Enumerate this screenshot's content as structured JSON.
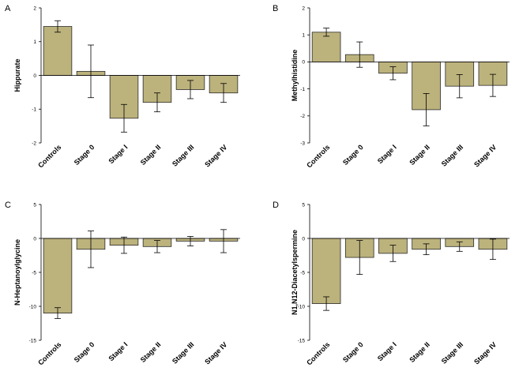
{
  "figure": {
    "bar_color": "#bcb27c",
    "bar_edge": "#2b2b2b"
  },
  "chart_data": [
    {
      "panel": "A",
      "type": "bar",
      "ylabel": "Hippurate",
      "categories": [
        "Controls",
        "Stage 0",
        "Stage I",
        "Stage II",
        "Stage III",
        "Stage IV"
      ],
      "values": [
        1.45,
        0.12,
        -1.27,
        -0.8,
        -0.42,
        -0.52
      ],
      "errors": [
        0.17,
        0.78,
        0.41,
        0.28,
        0.27,
        0.28
      ],
      "ylim": [
        -2,
        2
      ],
      "yticks": [
        -2,
        -1,
        0,
        1,
        2
      ],
      "ytick_labels": [
        "-2",
        "-1",
        "0",
        "1",
        "2"
      ]
    },
    {
      "panel": "B",
      "type": "bar",
      "ylabel": "Methylhistidine",
      "categories": [
        "Controls",
        "Stage 0",
        "Stage I",
        "Stage II",
        "Stage III",
        "Stage IV"
      ],
      "values": [
        1.1,
        0.27,
        -0.42,
        -1.77,
        -0.9,
        -0.87
      ],
      "errors": [
        0.15,
        0.47,
        0.24,
        0.6,
        0.43,
        0.41
      ],
      "ylim": [
        -3,
        2
      ],
      "yticks": [
        -3,
        -2,
        -1,
        0,
        1,
        2
      ],
      "ytick_labels": [
        "-3",
        "-2",
        "-1",
        "0",
        "1",
        "2"
      ]
    },
    {
      "panel": "C",
      "type": "bar",
      "ylabel": "N-Heptanoylglycine",
      "categories": [
        "Controls",
        "Stage 0",
        "Stage I",
        "Stage II",
        "Stage III",
        "Stage IV"
      ],
      "values": [
        -11.0,
        -1.6,
        -1.0,
        -1.2,
        -0.4,
        -0.4
      ],
      "errors": [
        0.8,
        2.7,
        1.2,
        0.9,
        0.7,
        1.7
      ],
      "ylim": [
        -15,
        5
      ],
      "yticks": [
        -15,
        -10,
        -5,
        0,
        5
      ],
      "ytick_labels": [
        "-15",
        "-10",
        "-5",
        "0",
        "5"
      ]
    },
    {
      "panel": "D",
      "type": "bar",
      "ylabel": "N1,N12-Diacetylspermine",
      "categories": [
        "Controls",
        "Stage 0",
        "Stage I",
        "Stage II",
        "Stage III",
        "Stage IV"
      ],
      "values": [
        -9.6,
        -2.8,
        -2.2,
        -1.6,
        -1.2,
        -1.6
      ],
      "errors": [
        1.0,
        2.5,
        1.2,
        0.8,
        0.7,
        1.5
      ],
      "ylim": [
        -15,
        5
      ],
      "yticks": [
        -15,
        -10,
        -5,
        0,
        5
      ],
      "ytick_labels": [
        "-15",
        "-10",
        "-5",
        "0",
        "5"
      ]
    }
  ]
}
